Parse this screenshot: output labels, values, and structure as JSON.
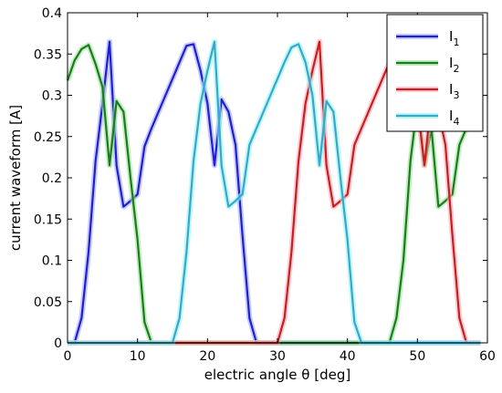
{
  "chart_data": {
    "type": "line",
    "title": "",
    "xlabel": "electric angle θ [deg]",
    "ylabel": "current waveform [A]",
    "xlim": [
      0,
      60
    ],
    "ylim": [
      0,
      0.4
    ],
    "xticks": [
      "0",
      "10",
      "20",
      "30",
      "40",
      "50",
      "60"
    ],
    "yticks": [
      "0",
      "0.05",
      "0.1",
      "0.15",
      "0.2",
      "0.25",
      "0.3",
      "0.35",
      "0.4"
    ],
    "grid": false,
    "legend_position": "top-right",
    "series": [
      {
        "name": "I",
        "subscript": "1",
        "color": "#1f1fd0",
        "glow": "#a0a8ff",
        "x": [
          0,
          1,
          2,
          3,
          4,
          5,
          6,
          7,
          8,
          9,
          10,
          11,
          12,
          13,
          14,
          15,
          16,
          17,
          18,
          19,
          20,
          21,
          22,
          23,
          24,
          25,
          26,
          27,
          28,
          29,
          30,
          31,
          32,
          33,
          34,
          35,
          36,
          37,
          38,
          39,
          40,
          41,
          42,
          43,
          44,
          45,
          46,
          47,
          48,
          49,
          50,
          51,
          52,
          53,
          54,
          55,
          56,
          57,
          58,
          59
        ],
        "y": [
          0,
          0,
          0.03,
          0.11,
          0.22,
          0.29,
          0.365,
          0.215,
          0.165,
          0.172,
          0.18,
          0.238,
          0.26,
          0.28,
          0.3,
          0.32,
          0.34,
          0.36,
          0.362,
          0.33,
          0.29,
          0.215,
          0.295,
          0.28,
          0.24,
          0.13,
          0.03,
          0,
          0,
          0,
          0,
          0,
          0,
          0,
          0,
          0,
          0,
          0,
          0,
          0,
          0,
          0,
          0,
          0,
          0,
          0,
          0,
          0,
          0,
          0,
          0,
          0,
          0,
          0,
          0,
          0,
          0,
          0,
          0,
          0
        ]
      },
      {
        "name": "I",
        "subscript": "2",
        "color": "#1e7a1e",
        "glow": "#9ae39a",
        "x": [
          0,
          1,
          2,
          3,
          4,
          5,
          6,
          7,
          8,
          9,
          10,
          11,
          12,
          13,
          14,
          15,
          16,
          17,
          18,
          19,
          20,
          21,
          22,
          23,
          24,
          25,
          26,
          27,
          28,
          29,
          30,
          31,
          32,
          33,
          34,
          35,
          36,
          37,
          38,
          39,
          40,
          41,
          42,
          43,
          44,
          45,
          46,
          47,
          48,
          49,
          50,
          51,
          52,
          53,
          54,
          55,
          56,
          57,
          58,
          59
        ],
        "y": [
          0.318,
          0.342,
          0.356,
          0.361,
          0.338,
          0.31,
          0.215,
          0.293,
          0.28,
          0.2,
          0.125,
          0.025,
          0,
          0,
          0,
          0,
          0,
          0,
          0,
          0,
          0,
          0,
          0,
          0,
          0,
          0,
          0,
          0,
          0,
          0,
          0,
          0,
          0,
          0,
          0,
          0,
          0,
          0,
          0,
          0,
          0,
          0,
          0,
          0,
          0,
          0,
          0,
          0.03,
          0.1,
          0.22,
          0.29,
          0.215,
          0.26,
          0.165,
          0.172,
          0.18,
          0.24,
          0.26,
          0.29,
          0.32
        ]
      },
      {
        "name": "I",
        "subscript": "3",
        "color": "#c42020",
        "glow": "#ffa8b8",
        "x": [
          0,
          1,
          2,
          3,
          4,
          5,
          6,
          7,
          8,
          9,
          10,
          11,
          12,
          13,
          14,
          15,
          16,
          17,
          18,
          19,
          20,
          21,
          22,
          23,
          24,
          25,
          26,
          27,
          28,
          29,
          30,
          31,
          32,
          33,
          34,
          35,
          36,
          37,
          38,
          39,
          40,
          41,
          42,
          43,
          44,
          45,
          46,
          47,
          48,
          49,
          50,
          51,
          52,
          53,
          54,
          55,
          56,
          57,
          58,
          59
        ],
        "y": [
          0,
          0,
          0,
          0,
          0,
          0,
          0,
          0,
          0,
          0,
          0,
          0,
          0,
          0,
          0,
          0,
          0,
          0,
          0,
          0,
          0,
          0,
          0,
          0,
          0,
          0,
          0,
          0,
          0,
          0,
          0,
          0.03,
          0.11,
          0.22,
          0.29,
          0.33,
          0.365,
          0.215,
          0.165,
          0.172,
          0.18,
          0.24,
          0.26,
          0.28,
          0.3,
          0.32,
          0.34,
          0.355,
          0.36,
          0.34,
          0.29,
          0.215,
          0.295,
          0.28,
          0.24,
          0.13,
          0.03,
          0,
          0,
          0
        ]
      },
      {
        "name": "I",
        "subscript": "4",
        "color": "#3aa6cc",
        "glow": "#8ff5f5",
        "x": [
          0,
          1,
          2,
          3,
          4,
          5,
          6,
          7,
          8,
          9,
          10,
          11,
          12,
          13,
          14,
          15,
          16,
          17,
          18,
          19,
          20,
          21,
          22,
          23,
          24,
          25,
          26,
          27,
          28,
          29,
          30,
          31,
          32,
          33,
          34,
          35,
          36,
          37,
          38,
          39,
          40,
          41,
          42,
          43,
          44,
          45,
          46,
          47,
          48,
          49,
          50,
          51,
          52,
          53,
          54,
          55,
          56,
          57,
          58,
          59
        ],
        "y": [
          0,
          0,
          0,
          0,
          0,
          0,
          0,
          0,
          0,
          0,
          0,
          0,
          0,
          0,
          0,
          0,
          0.03,
          0.11,
          0.22,
          0.29,
          0.33,
          0.365,
          0.215,
          0.165,
          0.172,
          0.18,
          0.24,
          0.26,
          0.28,
          0.3,
          0.32,
          0.34,
          0.358,
          0.362,
          0.34,
          0.3,
          0.215,
          0.293,
          0.28,
          0.2,
          0.125,
          0.025,
          0,
          0,
          0,
          0,
          0,
          0,
          0,
          0,
          0,
          0,
          0,
          0,
          0,
          0,
          0,
          0,
          0,
          0
        ]
      }
    ]
  }
}
